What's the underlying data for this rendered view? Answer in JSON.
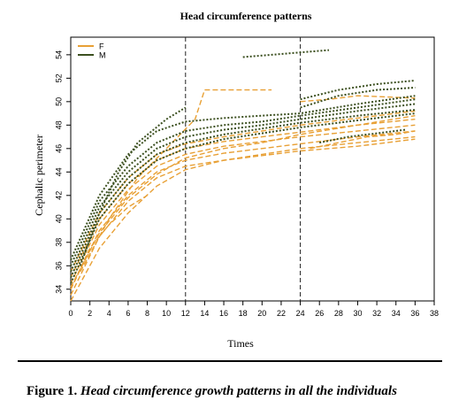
{
  "figure": {
    "label": "Figure 1.",
    "caption": "Head circumference growth patterns in all the individuals"
  },
  "chart_data": {
    "type": "line",
    "title": "Head circumference patterns",
    "xlabel": "Times",
    "ylabel": "Cephalic perimeter",
    "xlim": [
      0,
      38
    ],
    "ylim": [
      33,
      55.5
    ],
    "xticks": [
      0,
      2,
      4,
      6,
      8,
      10,
      12,
      14,
      16,
      18,
      20,
      22,
      24,
      26,
      28,
      30,
      32,
      34,
      36,
      38
    ],
    "yticks": [
      34,
      36,
      38,
      40,
      42,
      44,
      46,
      48,
      50,
      52,
      54
    ],
    "vlines": [
      12,
      24
    ],
    "legend": {
      "position": "top-left",
      "entries": [
        {
          "label": "F",
          "color": "#e8a035"
        },
        {
          "label": "M",
          "color": "#3c5020"
        }
      ]
    },
    "series": [
      {
        "group": "F",
        "x": [
          0,
          3,
          6,
          9,
          12,
          16,
          20,
          24,
          30,
          36
        ],
        "y": [
          33.5,
          38.5,
          41.5,
          43.5,
          44.5,
          45.0,
          45.4,
          45.8,
          46.2,
          46.8
        ]
      },
      {
        "group": "F",
        "x": [
          0,
          3,
          6,
          9,
          12,
          16,
          20,
          24,
          30,
          36
        ],
        "y": [
          34.0,
          39.0,
          42.0,
          44.0,
          45.0,
          45.6,
          46.0,
          46.4,
          47.0,
          47.5
        ]
      },
      {
        "group": "F",
        "x": [
          0,
          3,
          6,
          9,
          12,
          16,
          20,
          24,
          30,
          36
        ],
        "y": [
          34.5,
          39.5,
          42.5,
          44.5,
          45.5,
          46.2,
          46.6,
          47.0,
          47.5,
          48.0
        ]
      },
      {
        "group": "F",
        "x": [
          0,
          3,
          6,
          9,
          12,
          16,
          20,
          24,
          30,
          36
        ],
        "y": [
          35.0,
          40.0,
          43.0,
          45.0,
          46.0,
          46.6,
          47.0,
          47.4,
          48.0,
          48.5
        ]
      },
      {
        "group": "F",
        "x": [
          0,
          3,
          6,
          9,
          12,
          16,
          20,
          24,
          30,
          36
        ],
        "y": [
          33.0,
          37.5,
          40.5,
          42.8,
          44.2,
          45.0,
          45.5,
          46.0,
          46.5,
          47.0
        ]
      },
      {
        "group": "F",
        "x": [
          0,
          3,
          6,
          9,
          12,
          16,
          20,
          24,
          30,
          36
        ],
        "y": [
          35.5,
          40.5,
          43.5,
          45.5,
          46.4,
          47.0,
          47.5,
          48.0,
          48.6,
          49.2
        ]
      },
      {
        "group": "F",
        "x": [
          0,
          3,
          6,
          9,
          12,
          16,
          20,
          24,
          30,
          36
        ],
        "y": [
          34.2,
          38.8,
          41.8,
          43.8,
          45.2,
          46.0,
          46.5,
          47.2,
          48.0,
          48.8
        ]
      },
      {
        "group": "F",
        "x": [
          1,
          4,
          7,
          10,
          13,
          14
        ],
        "y": [
          35.5,
          40.0,
          43.5,
          46.0,
          48.5,
          51.0
        ]
      },
      {
        "group": "F",
        "x": [
          14,
          17,
          21
        ],
        "y": [
          51.0,
          51.0,
          51.0
        ]
      },
      {
        "group": "F",
        "x": [
          0,
          2,
          4,
          6,
          8
        ],
        "y": [
          34.0,
          37.5,
          39.5,
          41.0,
          42.0
        ]
      },
      {
        "group": "F",
        "x": [
          25,
          28,
          31,
          34,
          36
        ],
        "y": [
          46.0,
          46.5,
          47.0,
          47.2,
          47.5
        ]
      },
      {
        "group": "F",
        "x": [
          24,
          27,
          30,
          33,
          36
        ],
        "y": [
          50.0,
          50.2,
          50.5,
          50.4,
          50.3
        ]
      },
      {
        "group": "M",
        "x": [
          0,
          3,
          6,
          9,
          12,
          16,
          20,
          24,
          30,
          36
        ],
        "y": [
          35.5,
          41.0,
          44.0,
          46.0,
          47.0,
          47.6,
          48.0,
          48.5,
          49.2,
          49.8
        ]
      },
      {
        "group": "M",
        "x": [
          0,
          3,
          6,
          9,
          12,
          16,
          20,
          24,
          30,
          36
        ],
        "y": [
          35.0,
          40.5,
          43.5,
          45.5,
          46.5,
          47.2,
          47.7,
          48.2,
          48.8,
          49.3
        ]
      },
      {
        "group": "M",
        "x": [
          0,
          3,
          6,
          9,
          12,
          16,
          20,
          24,
          30,
          36
        ],
        "y": [
          36.0,
          41.5,
          44.5,
          46.5,
          47.5,
          48.0,
          48.3,
          48.8,
          49.5,
          50.2
        ]
      },
      {
        "group": "M",
        "x": [
          0,
          3,
          6,
          9,
          12,
          16,
          20,
          24,
          30,
          36
        ],
        "y": [
          34.5,
          40.0,
          43.0,
          45.0,
          46.0,
          46.8,
          47.3,
          47.8,
          48.4,
          49.0
        ]
      },
      {
        "group": "M",
        "x": [
          0,
          3,
          6,
          9,
          12,
          16,
          20,
          24,
          30,
          36
        ],
        "y": [
          36.5,
          42.0,
          45.5,
          47.5,
          48.3,
          48.6,
          48.8,
          49.0,
          49.8,
          50.5
        ]
      },
      {
        "group": "M",
        "x": [
          1,
          3,
          5,
          7,
          10,
          12
        ],
        "y": [
          36.0,
          40.5,
          44.0,
          46.5,
          48.5,
          49.5
        ]
      },
      {
        "group": "M",
        "x": [
          24,
          28,
          32,
          36
        ],
        "y": [
          49.5,
          50.5,
          51.0,
          51.2
        ]
      },
      {
        "group": "M",
        "x": [
          24,
          28,
          32,
          36
        ],
        "y": [
          50.2,
          51.0,
          51.5,
          51.8
        ]
      },
      {
        "group": "M",
        "x": [
          18,
          21,
          24,
          27
        ],
        "y": [
          53.8,
          54.0,
          54.2,
          54.4
        ]
      },
      {
        "group": "M",
        "x": [
          26,
          29,
          32,
          35
        ],
        "y": [
          46.5,
          47.0,
          47.3,
          47.6
        ]
      }
    ]
  }
}
